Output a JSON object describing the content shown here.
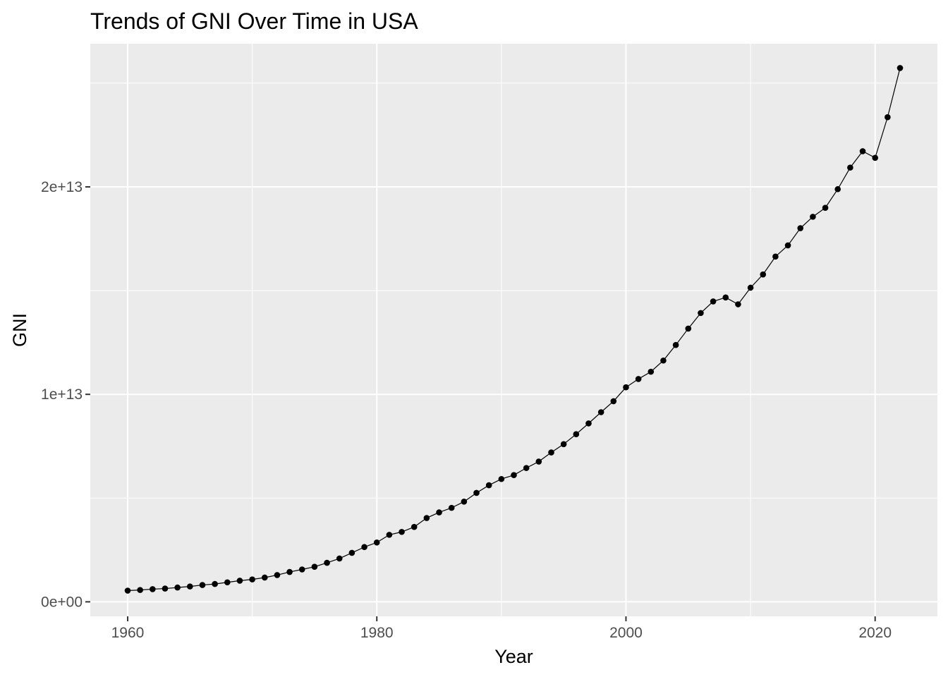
{
  "chart_data": {
    "type": "line",
    "title": "Trends of GNI Over Time in USA",
    "xlabel": "Year",
    "ylabel": "GNI",
    "xlim": [
      1957,
      2025
    ],
    "ylim": [
      -700000000000.0,
      26900000000000.0
    ],
    "x_ticks": [
      {
        "value": 1960,
        "label": "1960"
      },
      {
        "value": 1980,
        "label": "1980"
      },
      {
        "value": 2000,
        "label": "2000"
      },
      {
        "value": 2020,
        "label": "2020"
      }
    ],
    "y_ticks": [
      {
        "value": 0,
        "label": "0e+00"
      },
      {
        "value": 10000000000000.0,
        "label": "1e+13"
      },
      {
        "value": 20000000000000.0,
        "label": "2e+13"
      }
    ],
    "x_minor": [
      1970,
      1990,
      2010
    ],
    "y_minor": [
      5000000000000.0,
      15000000000000.0,
      25000000000000.0
    ],
    "grid": true,
    "legend": "none",
    "colors": {
      "panel": "#ebebeb",
      "grid": "#ffffff",
      "series": "#000000",
      "tick_text": "#4d4d4d",
      "tick_mark": "#333333"
    },
    "series": [
      {
        "x": [
          1960,
          1961,
          1962,
          1963,
          1964,
          1965,
          1966,
          1967,
          1968,
          1969,
          1970,
          1971,
          1972,
          1973,
          1974,
          1975,
          1976,
          1977,
          1978,
          1979,
          1980,
          1981,
          1982,
          1983,
          1984,
          1985,
          1986,
          1987,
          1988,
          1989,
          1990,
          1991,
          1992,
          1993,
          1994,
          1995,
          1996,
          1997,
          1998,
          1999,
          2000,
          2001,
          2002,
          2003,
          2004,
          2005,
          2006,
          2007,
          2008,
          2009,
          2010,
          2011,
          2012,
          2013,
          2014,
          2015,
          2016,
          2017,
          2018,
          2019,
          2020,
          2021,
          2022
        ],
        "values": [
          540000000000.0,
          570000000000.0,
          610000000000.0,
          640000000000.0,
          690000000000.0,
          740000000000.0,
          810000000000.0,
          860000000000.0,
          940000000000.0,
          1020000000000.0,
          1080000000000.0,
          1170000000000.0,
          1290000000000.0,
          1440000000000.0,
          1560000000000.0,
          1690000000000.0,
          1880000000000.0,
          2090000000000.0,
          2360000000000.0,
          2640000000000.0,
          2860000000000.0,
          3230000000000.0,
          3370000000000.0,
          3610000000000.0,
          4040000000000.0,
          4310000000000.0,
          4530000000000.0,
          4830000000000.0,
          5250000000000.0,
          5620000000000.0,
          5920000000000.0,
          6110000000000.0,
          6450000000000.0,
          6760000000000.0,
          7200000000000.0,
          7600000000000.0,
          8080000000000.0,
          8600000000000.0,
          9140000000000.0,
          9670000000000.0,
          10340000000000.0,
          10740000000000.0,
          11090000000000.0,
          11630000000000.0,
          12380000000000.0,
          13170000000000.0,
          13920000000000.0,
          14480000000000.0,
          14670000000000.0,
          14340000000000.0,
          15140000000000.0,
          15780000000000.0,
          16640000000000.0,
          17180000000000.0,
          18010000000000.0,
          18560000000000.0,
          18990000000000.0,
          19890000000000.0,
          20930000000000.0,
          21720000000000.0,
          21400000000000.0,
          23360000000000.0,
          25730000000000.0
        ]
      }
    ]
  }
}
